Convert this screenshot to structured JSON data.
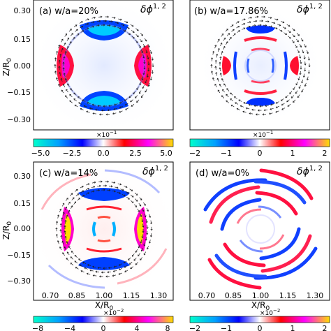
{
  "colors": {
    "cmap": [
      "#00ffcc",
      "#00a0ff",
      "#0000ff",
      "#ffffff",
      "#ff0000",
      "#ff00ff",
      "#ffdd00"
    ],
    "arrow": "#222222",
    "frame": "#000000"
  },
  "chart_data": [
    {
      "type": "heatmap",
      "panel": "a",
      "label": "(a) w/a=20%",
      "quantity": "δϕ",
      "quantity_sup": "1, 2",
      "xlim": [
        0.65,
        1.35
      ],
      "ylim": [
        -0.35,
        0.35
      ],
      "ylabel": "Z/R",
      "ylabel_sub": "0",
      "yticks": [
        "0.30",
        "0.15",
        "0.00",
        "−0.15",
        "−0.30"
      ],
      "colorbar": {
        "ticks": [
          "−5.0",
          "−2.5",
          "0.0",
          "2.5",
          "5.0"
        ],
        "exponent": "×10",
        "exponent_sup": "−1",
        "min": -5,
        "max": 5
      },
      "has_flow_arrows": true,
      "structure": "m=2 lobes: blue top/bottom, red left/right"
    },
    {
      "type": "heatmap",
      "panel": "b",
      "label": "(b) w/a=17.86%",
      "quantity": "δϕ",
      "quantity_sup": "1, 2",
      "xlim": [
        0.65,
        1.35
      ],
      "ylim": [
        -0.35,
        0.35
      ],
      "colorbar": {
        "ticks": [
          "−2",
          "−1",
          "0",
          "1",
          "2"
        ],
        "exponent": "×10",
        "exponent_sup": "−1",
        "min": -2,
        "max": 2
      },
      "has_flow_arrows": true
    },
    {
      "type": "heatmap",
      "panel": "c",
      "label": "(c) w/a=14%",
      "quantity": "δϕ",
      "quantity_sup": "1, 2",
      "xlim": [
        0.65,
        1.35
      ],
      "ylim": [
        -0.35,
        0.35
      ],
      "xlabel": "X/R",
      "xlabel_sub": "0",
      "ylabel": "Z/R",
      "ylabel_sub": "0",
      "xticks": [
        "0.70",
        "0.85",
        "1.00",
        "1.15",
        "1.30"
      ],
      "yticks": [
        "0.30",
        "0.15",
        "0.00",
        "−0.15",
        "−0.30"
      ],
      "colorbar": {
        "ticks": [
          "−8",
          "−4",
          "0",
          "4",
          "8"
        ],
        "exponent": "×10",
        "exponent_sup": "−2",
        "min": -8,
        "max": 8
      },
      "has_flow_arrows": true
    },
    {
      "type": "heatmap",
      "panel": "d",
      "label": "(d) w/a=0%",
      "quantity": "δϕ",
      "quantity_sup": "1, 2",
      "xlim": [
        0.65,
        1.35
      ],
      "ylim": [
        -0.35,
        0.35
      ],
      "xlabel": "X/R",
      "xlabel_sub": "0",
      "xticks": [
        "0.70",
        "0.85",
        "1.00",
        "1.15",
        "1.30"
      ],
      "colorbar": {
        "ticks": [
          "−2",
          "−1",
          "0",
          "1",
          "2"
        ],
        "exponent": "×10",
        "exponent_sup": "−2",
        "min": -2,
        "max": 2
      },
      "has_flow_arrows": false
    }
  ]
}
